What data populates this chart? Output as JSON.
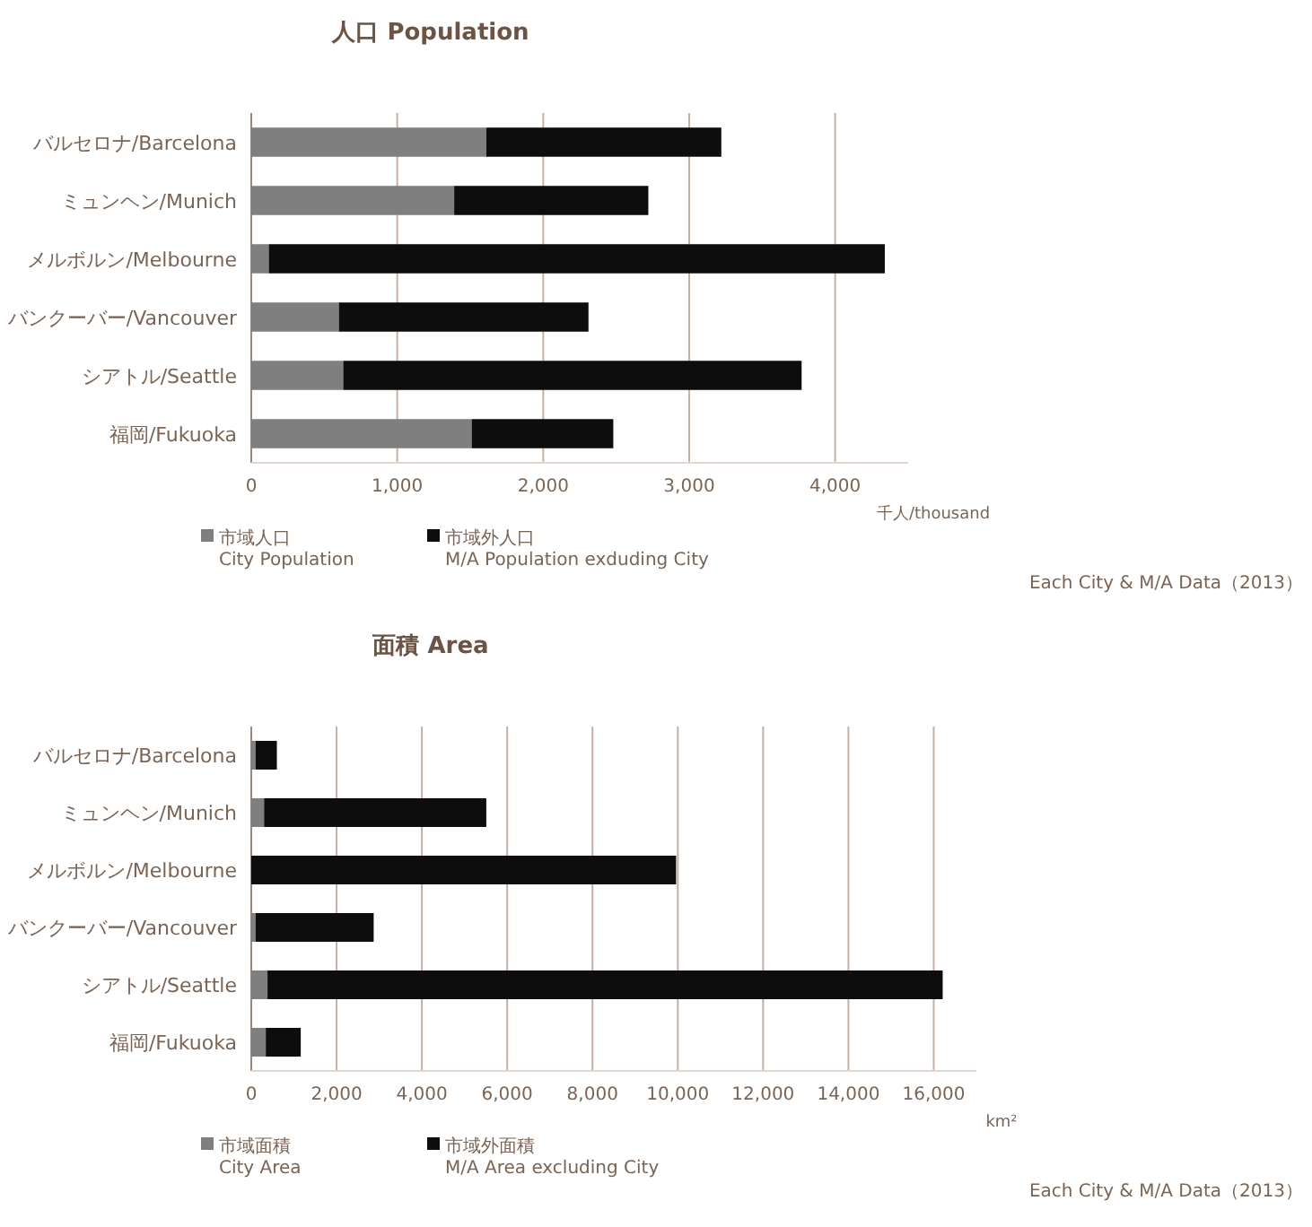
{
  "chart_data": [
    {
      "type": "bar",
      "orientation": "horizontal",
      "stacked": true,
      "title": "人口 Population",
      "xlabel": "千人/thousand",
      "categories": [
        "バルセロナ/Barcelona",
        "ミュンヘン/Munich",
        "メルボルン/Melbourne",
        "バンクーバー/Vancouver",
        "シアトル/Seattle",
        "福岡/Fukuoka"
      ],
      "series": [
        {
          "name": "市域人口\nCity Population",
          "color": "#7f7f7f",
          "values": [
            1610,
            1390,
            120,
            600,
            630,
            1510
          ]
        },
        {
          "name": "市域外人口\nM/A Population exduding City",
          "color": "#0d0d0d",
          "values": [
            1610,
            1330,
            4220,
            1710,
            3140,
            970
          ]
        }
      ],
      "xlim": [
        0,
        4500
      ],
      "xticks": [
        0,
        {
          "value": 1000,
          "label": "1,000"
        },
        {
          "value": 2000,
          "label": "2,000"
        },
        {
          "value": 3000,
          "label": "3,000"
        },
        {
          "value": 4000,
          "label": "4,000"
        }
      ],
      "grid": "x",
      "legend": "bottom",
      "annotations": [
        "Each City & M/A Data（2013）"
      ]
    },
    {
      "type": "bar",
      "orientation": "horizontal",
      "stacked": true,
      "title": "面積 Area",
      "xlabel": "km²",
      "categories": [
        "バルセロナ/Barcelona",
        "ミュンヘン/Munich",
        "メルボルン/Melbourne",
        "バンクーバー/Vancouver",
        "シアトル/Seattle",
        "福岡/Fukuoka"
      ],
      "series": [
        {
          "name": "市域面積\nCity Area",
          "color": "#7f7f7f",
          "values": [
            100,
            300,
            null,
            100,
            380,
            340
          ]
        },
        {
          "name": "市域外面積\nM/A Area excluding City",
          "color": "#0d0d0d",
          "values": [
            500,
            5210,
            9960,
            2770,
            15830,
            820
          ]
        }
      ],
      "xlim": [
        0,
        17000
      ],
      "xticks": [
        0,
        {
          "value": 2000,
          "label": "2,000"
        },
        {
          "value": 4000,
          "label": "4,000"
        },
        {
          "value": 6000,
          "label": "6,000"
        },
        {
          "value": 8000,
          "label": "8,000"
        },
        {
          "value": 10000,
          "label": "10,000"
        },
        {
          "value": 12000,
          "label": "12,000"
        },
        {
          "value": 14000,
          "label": "14,000"
        },
        {
          "value": 16000,
          "label": "16,000"
        }
      ],
      "grid": "x",
      "legend": "bottom",
      "annotations": [
        "Each City & M/A Data（2013）"
      ]
    }
  ]
}
